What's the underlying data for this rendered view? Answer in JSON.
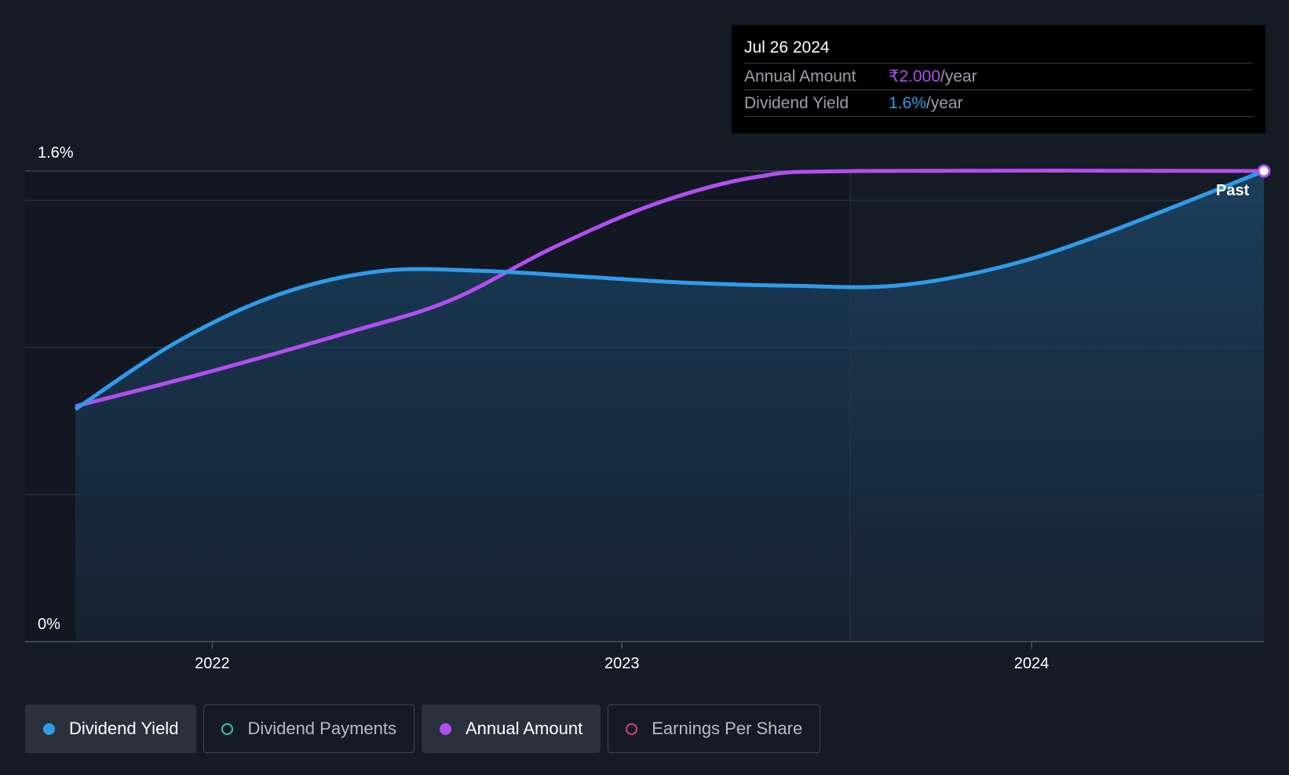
{
  "chart_data": {
    "type": "line",
    "x_ticks": [
      "2022",
      "2023",
      "2024"
    ],
    "y_ticks": [
      "1.6%",
      "0%"
    ],
    "ylim": [
      0,
      1.6
    ],
    "past_label": "Past",
    "series": [
      {
        "name": "Dividend Yield",
        "color": "#2f9bea",
        "area": true,
        "points": [
          [
            "2021-09-01",
            0.79
          ],
          [
            "2021-12-01",
            1.02
          ],
          [
            "2022-03-01",
            1.18
          ],
          [
            "2022-06-01",
            1.26
          ],
          [
            "2022-09-01",
            1.26
          ],
          [
            "2022-12-01",
            1.24
          ],
          [
            "2023-03-01",
            1.22
          ],
          [
            "2023-06-01",
            1.21
          ],
          [
            "2023-09-01",
            1.21
          ],
          [
            "2023-12-01",
            1.27
          ],
          [
            "2024-03-01",
            1.38
          ],
          [
            "2024-07-26",
            1.6
          ]
        ]
      },
      {
        "name": "Annual Amount",
        "color": "#b14ff0",
        "area": false,
        "points": [
          [
            "2021-09-01",
            0.8
          ],
          [
            "2022-01-01",
            0.92
          ],
          [
            "2022-05-01",
            1.05
          ],
          [
            "2022-08-01",
            1.16
          ],
          [
            "2022-11-01",
            1.34
          ],
          [
            "2023-02-01",
            1.49
          ],
          [
            "2023-05-01",
            1.58
          ],
          [
            "2023-08-01",
            1.6
          ],
          [
            "2024-07-26",
            1.6
          ]
        ]
      }
    ]
  },
  "tooltip": {
    "date": "Jul 26 2024",
    "rows": [
      {
        "label": "Annual Amount",
        "value": "₹2.000",
        "unit": "/year"
      },
      {
        "label": "Dividend Yield",
        "value": "1.6%",
        "unit": "/year"
      }
    ]
  },
  "legend": [
    {
      "label": "Dividend Yield",
      "color": "#2f9bea",
      "active": true
    },
    {
      "label": "Dividend Payments",
      "color": "#3fc1b0",
      "active": false
    },
    {
      "label": "Annual Amount",
      "color": "#b14ff0",
      "active": true
    },
    {
      "label": "Earnings Per Share",
      "color": "#d0457a",
      "active": false
    }
  ]
}
